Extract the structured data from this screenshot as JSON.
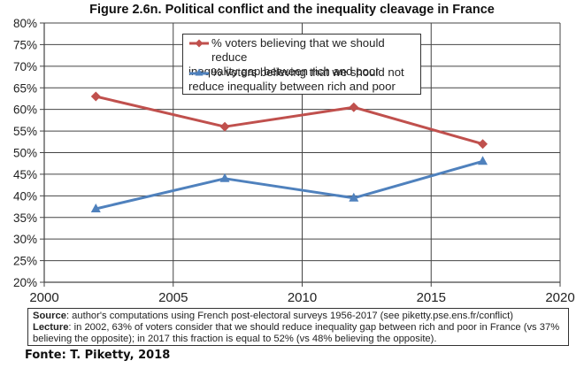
{
  "chart_data": {
    "type": "line",
    "title": "Figure 2.6n. Political conflict and the inequality cleavage in France",
    "xlabel": "",
    "ylabel": "",
    "x": [
      2002,
      2007,
      2012,
      2017
    ],
    "xlim": [
      2000,
      2020
    ],
    "ylim": [
      20,
      80
    ],
    "x_ticks": [
      "2000",
      "2005",
      "2010",
      "2015",
      "2020"
    ],
    "y_ticks": [
      "20%",
      "25%",
      "30%",
      "35%",
      "40%",
      "45%",
      "50%",
      "55%",
      "60%",
      "65%",
      "70%",
      "75%",
      "80%"
    ],
    "grid": true,
    "legend_position": "top-center",
    "series": [
      {
        "name": "% voters believing that we should reduce inequality gap between rich and poor",
        "legend_line1": "% voters believing that we should reduce",
        "legend_line2": "inequality gap between rich and poor",
        "color": "#c0504d",
        "marker": "diamond",
        "values": [
          63,
          56,
          60.5,
          52
        ]
      },
      {
        "name": "% voters believing that we should not reduce inequality between rich and poor",
        "legend_line1": "% voters believing that we should not",
        "legend_line2": "reduce inequality between rich and poor",
        "color": "#4f81bd",
        "marker": "triangle",
        "values": [
          37,
          44,
          39.5,
          48
        ]
      }
    ]
  },
  "notes": {
    "source_label": "Source",
    "source_text": ": author's computations using French post-electoral surveys 1956-2017 (see piketty.pse.ens.fr/conflict)",
    "lecture_label": "Lecture",
    "lecture_text": ": in 2002, 63% of voters consider that we should reduce inequality gap between rich and poor in France (vs 37% believing the opposite); in 2017 this fraction is equal to 52% (vs 48% believing the opposite)."
  },
  "credit": "Fonte: T. Piketty, 2018"
}
